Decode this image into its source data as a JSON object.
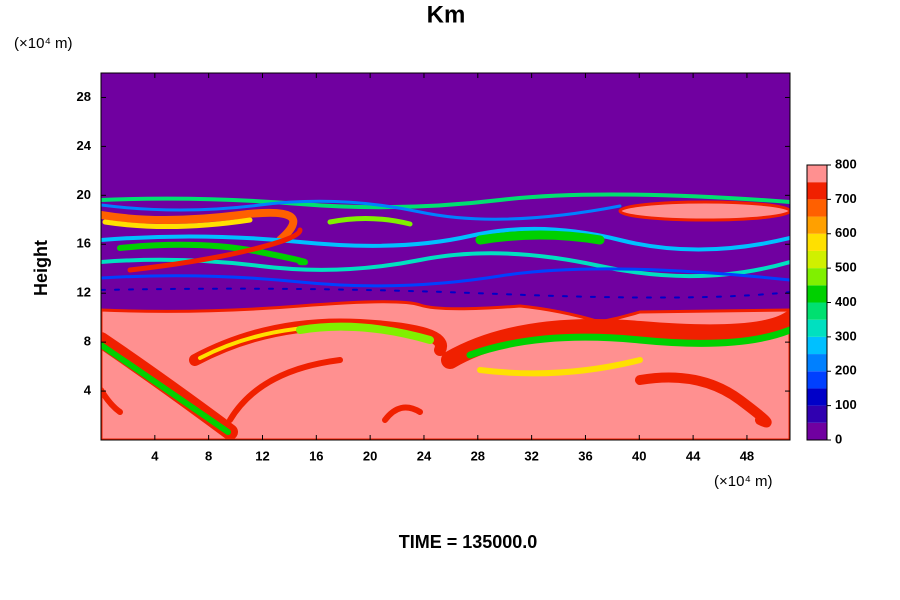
{
  "chart_data": {
    "type": "contour",
    "title": "Km",
    "ylabel": "Height",
    "x_unit": "(×10⁴ m)",
    "y_unit": "(×10⁴ m)",
    "annotation": "TIME = 135000.0",
    "xlim": [
      0,
      51.2
    ],
    "xticks": [
      4,
      8,
      12,
      16,
      20,
      24,
      28,
      32,
      36,
      40,
      44,
      48
    ],
    "ylim": [
      0,
      30
    ],
    "yticks": [
      4,
      8,
      12,
      16,
      20,
      24,
      28
    ],
    "colorbar": {
      "lim": [
        0,
        800
      ],
      "ticks": [
        0,
        100,
        200,
        300,
        400,
        500,
        600,
        700,
        800
      ],
      "levels": [
        0,
        50,
        100,
        150,
        200,
        250,
        300,
        350,
        400,
        450,
        500,
        550,
        600,
        650,
        700,
        750,
        800
      ],
      "colors": [
        "#7000a0",
        "#3000b0",
        "#0000c8",
        "#0040ff",
        "#0080ff",
        "#00c0ff",
        "#00e0c0",
        "#00e070",
        "#00d000",
        "#80f000",
        "#d0f000",
        "#ffe000",
        "#ffa000",
        "#ff6000",
        "#f02000",
        "#ff9090"
      ]
    }
  }
}
